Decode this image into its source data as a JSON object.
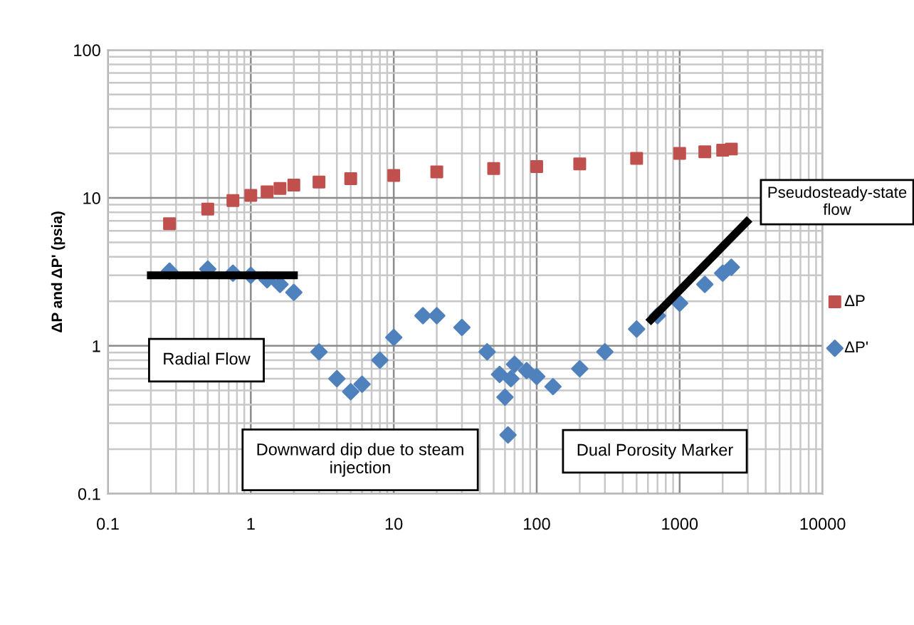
{
  "chart_data": {
    "type": "scatter",
    "ylabel": "ΔP and ΔP' (psia)",
    "log": "xy",
    "xlim": [
      0.1,
      10000
    ],
    "ylim": [
      0.1,
      100
    ],
    "xticks": [
      0.1,
      1,
      10,
      100,
      1000,
      10000
    ],
    "yticks": [
      0.1,
      1,
      10,
      100
    ],
    "grid": true,
    "legend": "right",
    "series": [
      {
        "name": "ΔP",
        "color": "#c0504d",
        "marker": "square",
        "x": [
          0.27,
          0.5,
          0.75,
          1,
          1.3,
          1.6,
          2,
          3,
          5,
          10,
          20,
          50,
          100,
          200,
          500,
          1000,
          1500,
          2000,
          2300
        ],
        "values": [
          6.7,
          8.4,
          9.6,
          10.4,
          11,
          11.6,
          12.2,
          12.8,
          13.5,
          14.2,
          15,
          15.8,
          16.3,
          17,
          18.5,
          20,
          20.5,
          21,
          21.4
        ]
      },
      {
        "name": "ΔP'",
        "color": "#4f81bd",
        "marker": "diamond",
        "x": [
          0.27,
          0.5,
          0.75,
          1,
          1.3,
          1.6,
          2,
          3,
          4,
          5,
          6,
          8,
          10,
          16,
          20,
          30,
          45,
          55,
          60,
          63,
          66,
          70,
          85,
          100,
          130,
          200,
          300,
          500,
          700,
          1000,
          1500,
          2000,
          2300
        ],
        "values": [
          3.2,
          3.3,
          3.1,
          3.0,
          2.8,
          2.6,
          2.3,
          0.91,
          0.6,
          0.49,
          0.55,
          0.8,
          1.14,
          1.6,
          1.6,
          1.33,
          0.91,
          0.64,
          0.45,
          0.25,
          0.6,
          0.75,
          0.68,
          0.62,
          0.53,
          0.7,
          0.91,
          1.3,
          1.6,
          1.94,
          2.6,
          3.1,
          3.4
        ]
      },
      {
        "type": "line",
        "color": "#000000",
        "x": [
          0.2,
          2
        ],
        "values": [
          3.0,
          3.0
        ]
      },
      {
        "type": "line",
        "color": "#000000",
        "x": [
          630,
          2950
        ],
        "values": [
          1.5,
          6.9
        ]
      }
    ],
    "annotations": [
      "Radial Flow",
      "Downward dip due to steam injection",
      "Dual Porosity Marker",
      "Pseudosteady-state flow"
    ]
  }
}
